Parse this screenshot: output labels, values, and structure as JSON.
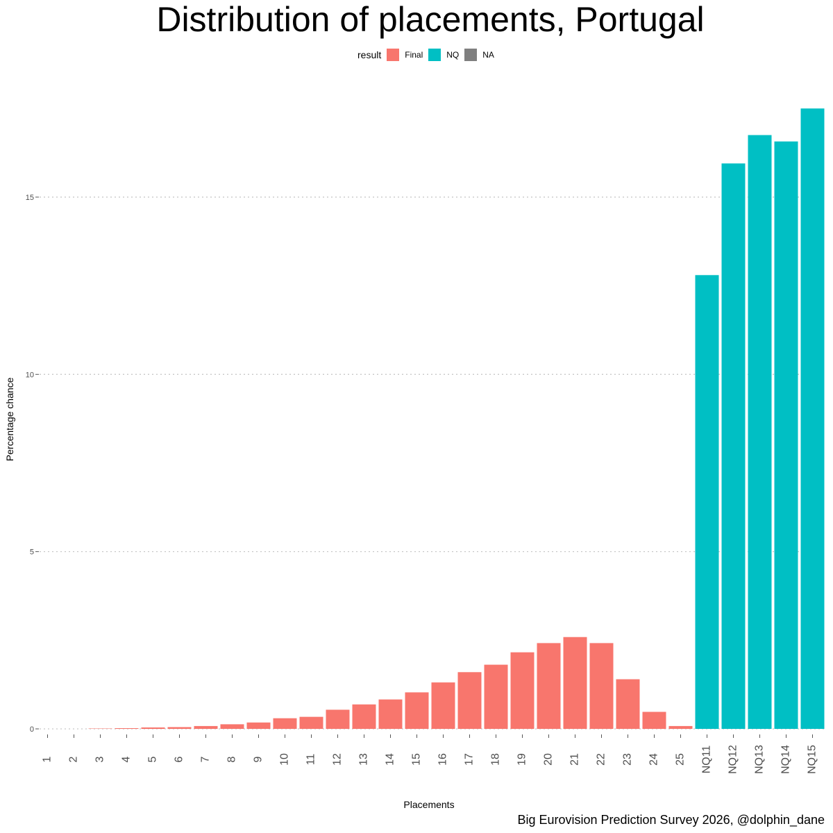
{
  "chart_data": {
    "type": "bar",
    "title": "Distribution of placements, Portugal",
    "xlabel": "Placements",
    "ylabel": "Percentage chance",
    "caption": "Big Eurovision Prediction Survey 2026, @dolphin_dane",
    "legend": {
      "title": "result",
      "position": "top",
      "entries": [
        {
          "label": "Final",
          "color": "#F8766D"
        },
        {
          "label": "NQ",
          "color": "#00BFC4"
        },
        {
          "label": "NA",
          "color": "#7F7F7F"
        }
      ]
    },
    "ylim": [
      0,
      17.5
    ],
    "yticks": [
      0,
      5,
      10,
      15
    ],
    "grid": "horizontal dotted",
    "categories": [
      "1",
      "2",
      "3",
      "4",
      "5",
      "6",
      "7",
      "8",
      "9",
      "10",
      "11",
      "12",
      "13",
      "14",
      "15",
      "16",
      "17",
      "18",
      "19",
      "20",
      "21",
      "22",
      "23",
      "24",
      "25",
      "NQ11",
      "NQ12",
      "NQ13",
      "NQ14",
      "NQ15"
    ],
    "values": [
      0,
      0,
      0.01,
      0.02,
      0.04,
      0.05,
      0.08,
      0.13,
      0.18,
      0.3,
      0.34,
      0.54,
      0.69,
      0.83,
      1.03,
      1.31,
      1.6,
      1.81,
      2.16,
      2.42,
      2.59,
      2.42,
      1.4,
      0.48,
      0.08,
      12.8,
      15.95,
      16.75,
      16.57,
      17.5
    ],
    "groups": [
      "Final",
      "Final",
      "Final",
      "Final",
      "Final",
      "Final",
      "Final",
      "Final",
      "Final",
      "Final",
      "Final",
      "Final",
      "Final",
      "Final",
      "Final",
      "Final",
      "Final",
      "Final",
      "Final",
      "Final",
      "Final",
      "Final",
      "Final",
      "Final",
      "Final",
      "NQ",
      "NQ",
      "NQ",
      "NQ",
      "NQ"
    ]
  }
}
